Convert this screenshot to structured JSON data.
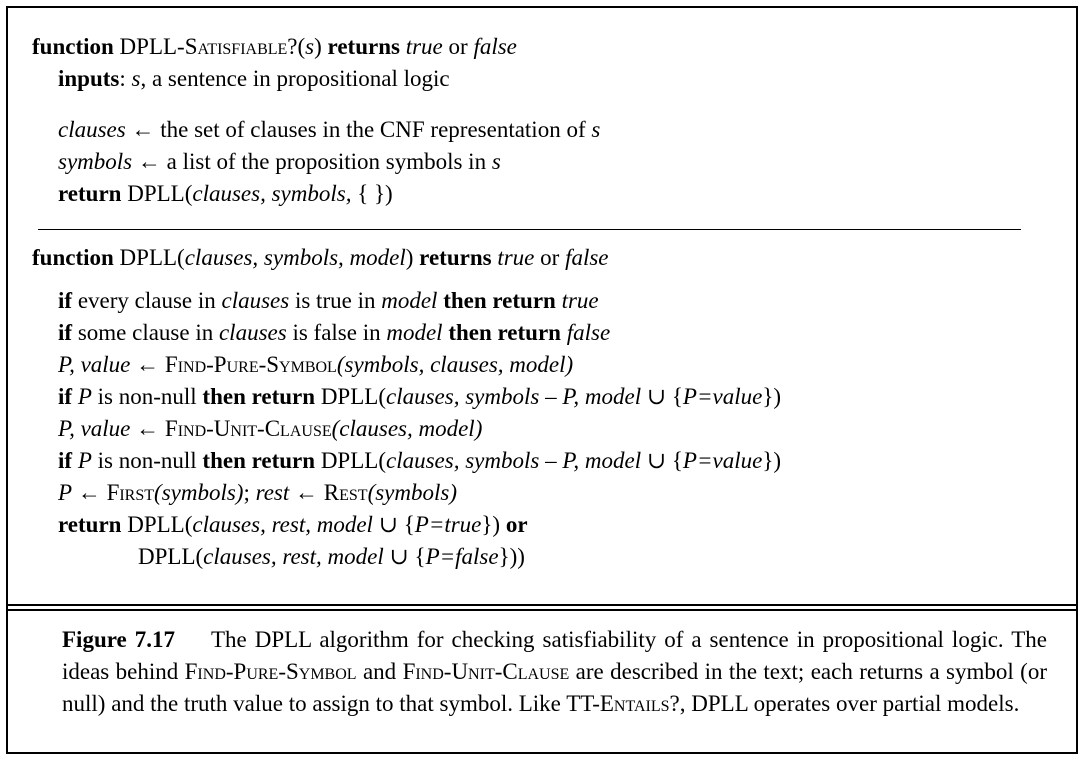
{
  "algo1": {
    "l1": {
      "kw1": "function",
      "name": "DPLL-",
      "name_sc": "Satisfiable",
      "q": "?(",
      "arg": "s",
      ")": ")",
      "kw2": "returns",
      "t": "true",
      "or": "or",
      "f": "false"
    },
    "l2": {
      "kw": "inputs",
      "rest": ": ",
      "s": "s",
      "desc": ", a sentence in propositional logic"
    },
    "l3": {
      "v": "clauses",
      "arrow": " ← ",
      "t": "the set of clauses in the CNF representation of ",
      "s": "s"
    },
    "l4": {
      "v": "symbols",
      "arrow": " ← ",
      "t": "a list of the proposition symbols in ",
      "s": "s"
    },
    "l5": {
      "kw": "return",
      "t": " DPLL(",
      "a": "clauses, symbols,",
      "end": " { })"
    }
  },
  "algo2": {
    "l1": {
      "kw1": "function",
      "t1": " DPLL(",
      "args": "clauses, symbols, model",
      "t2": ")",
      "kw2": "returns",
      "tr": "true",
      "or": "or",
      "f": "false"
    },
    "l2": {
      "kw": "if",
      "t": " every clause in ",
      "v": "clauses",
      "t2": " is true in ",
      "m": "model",
      "kw2": "then return",
      "r": "true"
    },
    "l3": {
      "kw": "if",
      "t": " some clause in ",
      "v": "clauses",
      "t2": " is false in ",
      "m": "model",
      "kw2": "then return",
      "r": "false"
    },
    "l4": {
      "v": "P, value",
      "arrow": " ← ",
      "fn": "Find-Pure-Symbol",
      "args": "(symbols, clauses, model)"
    },
    "l5": {
      "kw": "if",
      "p": "P",
      "t": " is non-null ",
      "kw2": "then return",
      "t2": " DPLL(",
      "args": "clauses, symbols",
      "minus": " – ",
      "p2": "P, model",
      "union": " ∪ {",
      "eq": "P=value",
      "end": "})"
    },
    "l6": {
      "v": "P, value",
      "arrow": " ← ",
      "fn": "Find-Unit-Clause",
      "args": "(clauses, model)"
    },
    "l7": {
      "kw": "if",
      "p": "P",
      "t": " is non-null ",
      "kw2": "then return",
      "t2": " DPLL(",
      "args": "clauses, symbols",
      "minus": " – ",
      "p2": "P, model",
      "union": " ∪ {",
      "eq": "P=value",
      "end": "})"
    },
    "l8": {
      "p": "P",
      "arrow": " ← ",
      "fn": "First",
      "a": "(symbols)",
      "semi": "; ",
      "r": "rest",
      "arrow2": " ← ",
      "fn2": "Rest",
      "a2": "(symbols)"
    },
    "l9": {
      "kw": "return",
      "t": " DPLL(",
      "args": "clauses, rest, model",
      "union": " ∪ {",
      "eq": "P=true",
      "end": "})",
      "or": " or"
    },
    "l10": {
      "t": "DPLL(",
      "args": "clauses, rest, model",
      "union": " ∪ {",
      "eq": "P=false",
      "end": "}))"
    }
  },
  "caption": {
    "label": "Figure 7.17",
    "p1": "The DPLL algorithm for checking satisfiability of a sentence in propositional logic.  The ideas behind ",
    "sc1": "Find-Pure-Symbol",
    "p2": " and ",
    "sc2": "Find-Unit-Clause",
    "p3": " are described in the text; each returns a symbol (or null) and the truth value to assign to that symbol.  Like TT-",
    "sc3": "Entails",
    "p4": "?, DPLL operates over partial models."
  }
}
